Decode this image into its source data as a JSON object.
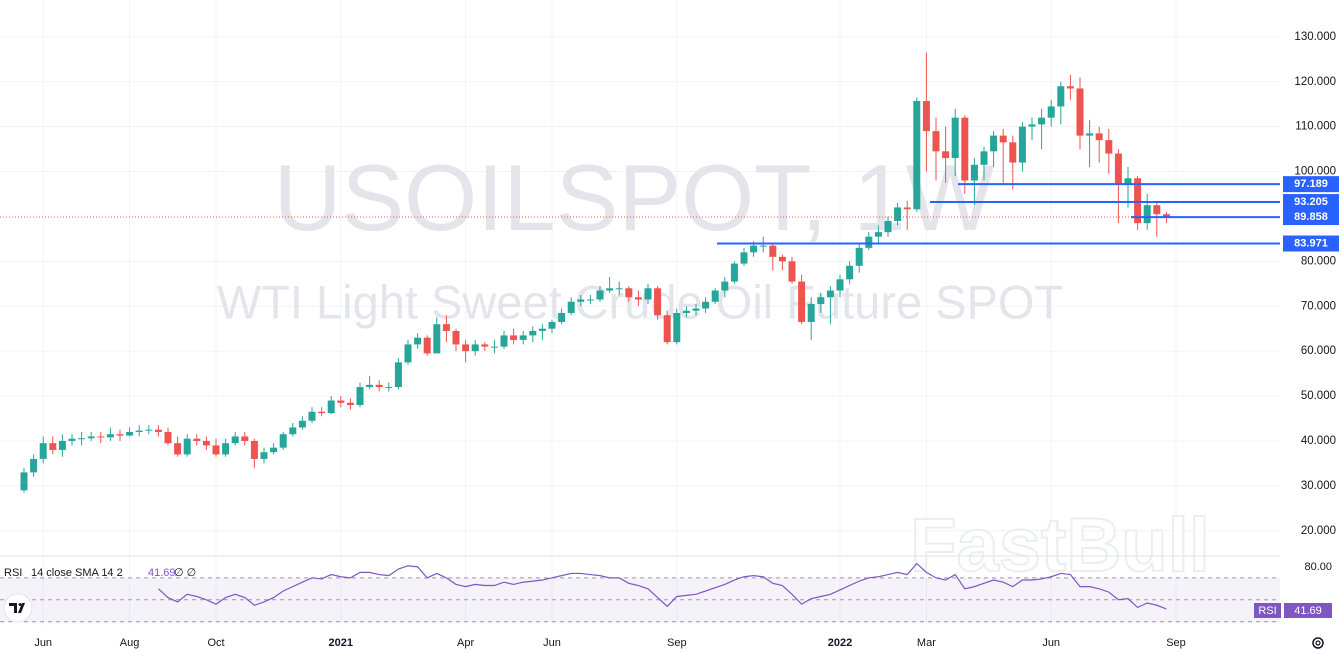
{
  "chart_data": {
    "type": "candlestick",
    "title": "USOILSPOT, 1W",
    "subtitle": "WTI Light Sweet Crude Oil Future SPOT",
    "watermark": "FastBull",
    "categories": [
      null,
      null,
      "Jun",
      null,
      null,
      null,
      null,
      null,
      null,
      null,
      null,
      "Aug",
      null,
      null,
      null,
      null,
      null,
      null,
      null,
      null,
      "Oct",
      null,
      null,
      null,
      null,
      null,
      null,
      null,
      null,
      null,
      null,
      null,
      null,
      "2021",
      null,
      null,
      null,
      null,
      null,
      null,
      null,
      null,
      null,
      null,
      null,
      null,
      "Apr",
      null,
      null,
      null,
      null,
      null,
      null,
      null,
      null,
      "Jun",
      null,
      null,
      null,
      null,
      null,
      null,
      null,
      null,
      null,
      null,
      null,
      null,
      "Sep",
      null,
      null,
      null,
      null,
      null,
      null,
      null,
      null,
      null,
      null,
      null,
      null,
      null,
      null,
      null,
      null,
      "2022",
      null,
      null,
      null,
      null,
      null,
      null,
      null,
      null,
      "Mar",
      null,
      null,
      null,
      null,
      null,
      null,
      null,
      null,
      null,
      null,
      null,
      null,
      "Jun",
      null,
      null,
      null,
      null,
      null,
      null,
      null,
      null,
      null,
      null,
      null,
      null,
      "Sep",
      null,
      null,
      null
    ],
    "open": [
      29,
      33,
      36,
      39.5,
      38,
      40,
      40.5,
      40.6,
      41,
      40.8,
      41.5,
      41.2,
      42,
      42.3,
      42.5,
      42,
      39.5,
      37,
      40.5,
      40,
      39,
      37,
      39.5,
      41,
      40,
      36,
      37.5,
      38.5,
      41.5,
      43,
      44.5,
      46.5,
      46.2,
      49,
      48.5,
      48,
      52,
      52.5,
      52,
      52,
      57.5,
      61.5,
      63,
      59.5,
      66,
      64.5,
      61.5,
      60,
      61.5,
      61,
      61,
      63.5,
      62.5,
      63.5,
      64.5,
      65,
      66.5,
      68.5,
      71,
      71.5,
      71.5,
      73.5,
      74,
      74,
      72,
      71.5,
      74,
      68,
      62,
      68.5,
      69,
      69.5,
      71,
      73.5,
      75.5,
      79.5,
      82,
      83.5,
      83.5,
      81,
      80,
      75.5,
      66.5,
      70.5,
      72,
      73.5,
      76,
      79,
      83,
      85.5,
      86.5,
      89,
      92,
      91.6,
      115.7,
      109,
      104.5,
      103,
      112,
      98,
      101.5,
      104.5,
      108,
      106.5,
      102,
      110,
      110.5,
      112,
      114.5,
      119,
      118.5,
      108,
      108.5,
      107,
      104,
      97,
      98.5,
      88.5,
      92.5,
      90.5,
      null,
      null,
      null,
      null
    ],
    "high": [
      34,
      37,
      41,
      41,
      41.5,
      41.5,
      42,
      42,
      42,
      43,
      42.5,
      43,
      43.5,
      43.5,
      43.5,
      43,
      41,
      41.5,
      41.5,
      41,
      40.5,
      40.5,
      42,
      42,
      40.5,
      38.5,
      39.5,
      42,
      44,
      45.5,
      47.5,
      47.5,
      50,
      50,
      49.5,
      53,
      54.5,
      53.5,
      53,
      58.5,
      62.5,
      64,
      63.5,
      67.5,
      68,
      65,
      62.5,
      62.5,
      62,
      62.5,
      64.5,
      65,
      64.5,
      65.5,
      66,
      67,
      69.5,
      72,
      72.5,
      72.5,
      74.5,
      76.5,
      75.5,
      74.5,
      73.5,
      75,
      74.5,
      69,
      69.5,
      70,
      70.5,
      72,
      74,
      76.5,
      80,
      83,
      84.5,
      85.5,
      84,
      81.5,
      81,
      77,
      72,
      73,
      74.5,
      77,
      80,
      84,
      86.5,
      88,
      90,
      93,
      93.5,
      116.5,
      126.5,
      112,
      110,
      114,
      112.5,
      103,
      105.5,
      109,
      109.5,
      108,
      111,
      112,
      114,
      116,
      120,
      121.5,
      121,
      111.5,
      110,
      109.5,
      105,
      101,
      99,
      95,
      93,
      91,
      null,
      null,
      null,
      null
    ],
    "low": [
      28.5,
      32,
      35,
      37,
      36.5,
      39,
      39,
      40,
      39.5,
      40,
      40,
      41,
      41,
      41.5,
      41,
      39,
      36.5,
      36.5,
      39,
      38,
      36.5,
      36.5,
      39,
      39,
      34,
      35,
      37,
      38,
      41,
      42.5,
      44,
      45.5,
      46,
      47.5,
      47,
      47.5,
      51.5,
      51,
      51,
      51.5,
      57,
      60.5,
      59,
      59.5,
      62,
      60,
      57.5,
      59,
      60,
      59.5,
      60.5,
      61.5,
      61.5,
      62,
      62.5,
      64,
      66,
      68,
      70,
      70.5,
      71,
      73,
      72.5,
      71,
      70,
      70.5,
      67,
      61.5,
      61.5,
      67.5,
      68,
      68.5,
      70.5,
      72,
      75,
      79,
      81,
      82,
      78,
      78,
      75,
      66,
      62.5,
      68.5,
      66,
      72,
      75,
      77.5,
      82.5,
      84,
      85.5,
      88,
      87,
      91,
      100,
      98,
      97.5,
      99,
      95,
      92.5,
      98,
      101,
      97.5,
      96,
      100,
      107,
      105,
      110,
      110.5,
      116,
      105,
      101,
      102,
      99.5,
      88.5,
      92,
      87,
      87,
      85.5,
      88.5,
      null,
      null,
      null,
      null
    ],
    "close": [
      33,
      36,
      39.5,
      38,
      40,
      40.5,
      40.6,
      41,
      40.8,
      41.5,
      41.2,
      42,
      42.3,
      42.5,
      42,
      39.5,
      37,
      40.5,
      40,
      39,
      37,
      39.5,
      41,
      40,
      36,
      37.5,
      38.5,
      41.5,
      43,
      44.5,
      46.5,
      46.2,
      49,
      48.5,
      48,
      52,
      52.5,
      52,
      52,
      57.5,
      61.5,
      63,
      59.5,
      66,
      64.5,
      61.5,
      60,
      61.5,
      61,
      61,
      63.5,
      62.5,
      63.5,
      64.5,
      65,
      66.5,
      68.5,
      71,
      71.5,
      71.5,
      73.5,
      74,
      74,
      72,
      71.5,
      74,
      68,
      62,
      68.5,
      69,
      69.5,
      71,
      73.5,
      75.5,
      79.5,
      82,
      83.5,
      83.5,
      81,
      80,
      75.5,
      66.5,
      70.5,
      72,
      73.5,
      76,
      79,
      83,
      85.5,
      86.5,
      89,
      92,
      91.6,
      115.7,
      109,
      104.5,
      103,
      112,
      98,
      101.5,
      104.5,
      108,
      106.5,
      102,
      110,
      110.5,
      112,
      114.5,
      119,
      118.5,
      108,
      108.5,
      107,
      104,
      97,
      98.5,
      88.5,
      92.5,
      90.5,
      89.86,
      null,
      null,
      null,
      null
    ],
    "up_color": "#26a69a",
    "down_color": "#ef5350",
    "ylim": [
      14.6,
      138.2
    ],
    "yticks": [
      {
        "value": 20,
        "label": "20.000"
      },
      {
        "value": 30,
        "label": "30.000"
      },
      {
        "value": 40,
        "label": "40.000"
      },
      {
        "value": 50,
        "label": "50.000"
      },
      {
        "value": 60,
        "label": "60.000"
      },
      {
        "value": 70,
        "label": "70.000"
      },
      {
        "value": 80,
        "label": "80.000"
      },
      {
        "value": 100,
        "label": "100.000"
      },
      {
        "value": 110,
        "label": "110.000"
      },
      {
        "value": 120,
        "label": "120.000"
      },
      {
        "value": 130,
        "label": "130.000"
      }
    ],
    "grid": true,
    "hlines": {
      "color": "#2962ff",
      "values": [
        97.189,
        93.205,
        89.858,
        83.971
      ]
    },
    "rsi": {
      "name": "RSI",
      "settings": "14 close SMA 14 2",
      "extra": "∅ ∅",
      "color": "#7e57c2",
      "values": [
        null,
        null,
        null,
        null,
        null,
        null,
        null,
        null,
        null,
        null,
        null,
        null,
        null,
        null,
        60,
        52,
        48,
        55,
        53,
        50,
        46,
        52,
        55,
        52,
        45,
        48,
        52,
        58,
        62,
        66,
        70,
        69,
        73,
        71,
        70,
        75,
        75,
        73,
        72,
        78,
        81,
        80,
        70,
        74,
        70,
        64,
        62,
        64,
        63,
        63,
        66,
        64,
        66,
        67,
        68,
        70,
        72,
        74,
        74,
        73,
        72,
        70,
        70,
        65,
        63,
        60,
        52,
        44,
        53,
        54,
        55,
        58,
        61,
        64,
        68,
        71,
        72,
        71,
        65,
        63,
        55,
        46,
        51,
        53,
        55,
        59,
        63,
        67,
        70,
        71,
        73,
        75,
        73,
        83,
        75,
        70,
        68,
        73,
        60,
        62,
        65,
        68,
        66,
        62,
        68,
        68,
        69,
        71,
        74,
        73,
        62,
        62,
        60,
        57,
        50,
        51,
        43,
        47,
        45,
        41.69,
        null,
        null,
        null,
        null
      ],
      "ylim": [
        27,
        89
      ],
      "yticks": [
        {
          "value": 80,
          "label": "80.00"
        }
      ],
      "levels": [
        70,
        50,
        30
      ]
    }
  }
}
